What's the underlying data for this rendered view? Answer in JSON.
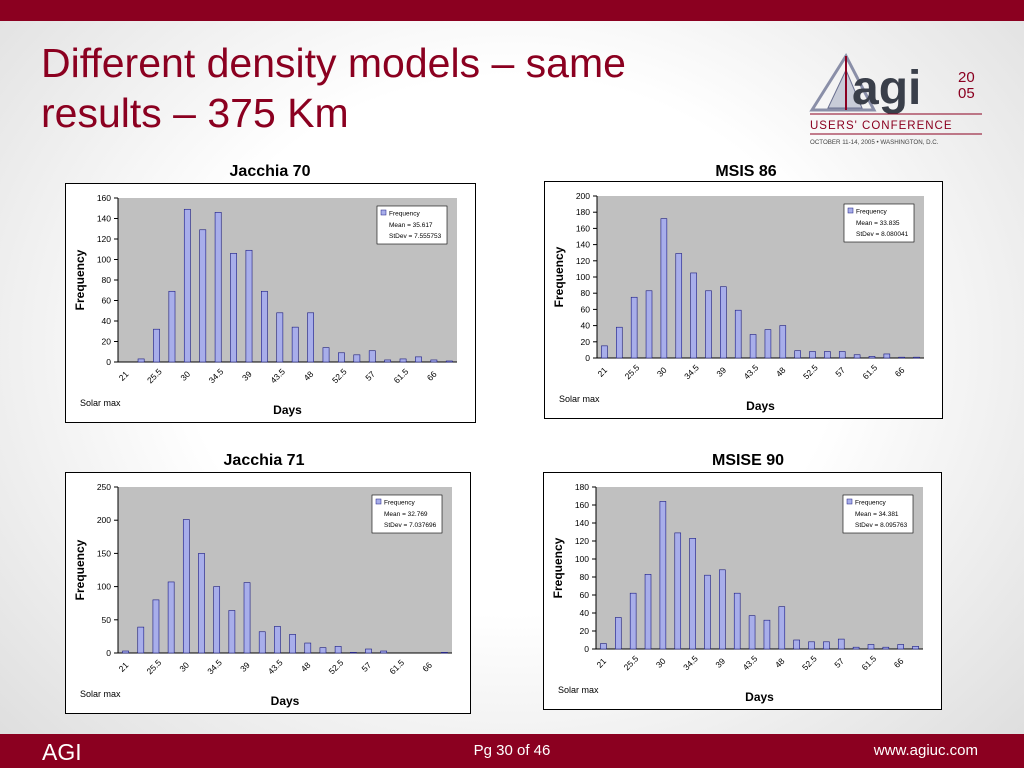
{
  "slide": {
    "title_line1": "Different density models – same",
    "title_line2": "results – 375 Km",
    "accent_color": "#8b0020"
  },
  "logo": {
    "name": "agi",
    "year_top": "20",
    "year_bottom": "05",
    "tagline": "USERS' CONFERENCE",
    "dates": "OCTOBER 11-14, 2005 • WASHINGTON, D.C."
  },
  "footer": {
    "left": "AGI",
    "center": "Pg 30 of 46",
    "right": "www.agiuc.com"
  },
  "chart_data": [
    {
      "type": "bar",
      "title": "Jacchia 70",
      "xlabel": "Days",
      "ylabel": "Frequency",
      "note": "Solar max",
      "tick_labels": [
        "21",
        "25.5",
        "30",
        "34.5",
        "39",
        "43.5",
        "48",
        "52.5",
        "57",
        "61.5",
        "66"
      ],
      "ylim": [
        0,
        160
      ],
      "yticks": [
        0,
        20,
        40,
        60,
        80,
        100,
        120,
        140,
        160
      ],
      "legend": {
        "series": "Frequency",
        "mean": "Mean = 35.617",
        "stdev": "StDev = 7.555753"
      },
      "values": [
        0,
        3,
        32,
        69,
        149,
        129,
        146,
        106,
        109,
        69,
        48,
        34,
        48,
        14,
        9,
        7,
        11,
        2,
        3,
        5,
        2,
        1
      ],
      "bar_color": "#a8aeea",
      "plot_bg": "#c0c0c0"
    },
    {
      "type": "bar",
      "title": "MSIS 86",
      "xlabel": "Days",
      "ylabel": "Frequency",
      "note": "Solar max",
      "tick_labels": [
        "21",
        "25.5",
        "30",
        "34.5",
        "39",
        "43.5",
        "48",
        "52.5",
        "57",
        "61.5",
        "66"
      ],
      "ylim": [
        0,
        200
      ],
      "yticks": [
        0,
        20,
        40,
        60,
        80,
        100,
        120,
        140,
        160,
        180,
        200
      ],
      "legend": {
        "series": "Frequency",
        "mean": "Mean = 33.835",
        "stdev": "StDev = 8.080041"
      },
      "values": [
        15,
        38,
        75,
        83,
        172,
        129,
        105,
        83,
        88,
        59,
        29,
        35,
        40,
        9,
        8,
        8,
        8,
        4,
        2,
        5,
        1,
        1
      ],
      "bar_color": "#a8aeea",
      "plot_bg": "#c0c0c0"
    },
    {
      "type": "bar",
      "title": "Jacchia 71",
      "xlabel": "Days",
      "ylabel": "Frequency",
      "note": "Solar max",
      "tick_labels": [
        "21",
        "25.5",
        "30",
        "34.5",
        "39",
        "43.5",
        "48",
        "52.5",
        "57",
        "61.5",
        "66"
      ],
      "ylim": [
        0,
        250
      ],
      "yticks": [
        0,
        50,
        100,
        150,
        200,
        250
      ],
      "legend": {
        "series": "Frequency",
        "mean": "Mean = 32.769",
        "stdev": "StDev = 7.037696"
      },
      "values": [
        3,
        39,
        80,
        107,
        201,
        150,
        100,
        64,
        106,
        32,
        40,
        28,
        15,
        8,
        10,
        1,
        6,
        3,
        0,
        0,
        0,
        1
      ],
      "bar_color": "#a8aeea",
      "plot_bg": "#c0c0c0"
    },
    {
      "type": "bar",
      "title": "MSISE 90",
      "xlabel": "Days",
      "ylabel": "Frequency",
      "note": "Solar max",
      "tick_labels": [
        "21",
        "25.5",
        "30",
        "34.5",
        "39",
        "43.5",
        "48",
        "52.5",
        "57",
        "61.5",
        "66"
      ],
      "ylim": [
        0,
        180
      ],
      "yticks": [
        0,
        20,
        40,
        60,
        80,
        100,
        120,
        140,
        160,
        180
      ],
      "legend": {
        "series": "Frequency",
        "mean": "Mean = 34.381",
        "stdev": "StDev = 8.095763"
      },
      "values": [
        6,
        35,
        62,
        83,
        164,
        129,
        123,
        82,
        88,
        62,
        37,
        32,
        47,
        10,
        8,
        8,
        11,
        2,
        5,
        2,
        5,
        3
      ],
      "bar_color": "#a8aeea",
      "plot_bg": "#c0c0c0"
    }
  ]
}
